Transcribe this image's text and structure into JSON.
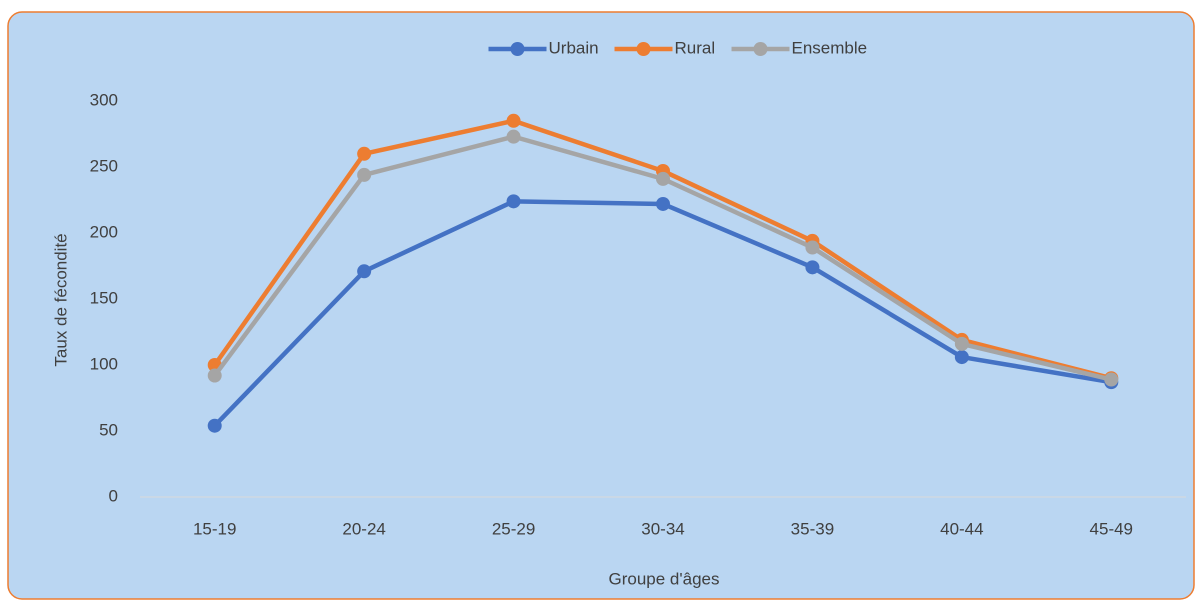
{
  "chart_data": {
    "type": "line",
    "x_label": "Groupe d'âges",
    "y_label": "Taux de fécondité",
    "categories": [
      "15-19",
      "20-24",
      "25-29",
      "30-34",
      "35-39",
      "40-44",
      "45-49"
    ],
    "series": [
      {
        "name": "Urbain",
        "color": "#4472c4",
        "values": [
          54,
          171,
          224,
          222,
          174,
          106,
          87
        ]
      },
      {
        "name": "Rural",
        "color": "#ed7d31",
        "values": [
          100,
          260,
          285,
          247,
          194,
          119,
          90
        ]
      },
      {
        "name": "Ensemble",
        "color": "#a5a5a5",
        "values": [
          92,
          244,
          273,
          241,
          189,
          116,
          89
        ]
      }
    ],
    "ylim": [
      0,
      300
    ],
    "yticks": [
      0,
      50,
      100,
      150,
      200,
      250,
      300
    ],
    "grid": false,
    "legend": "top"
  }
}
